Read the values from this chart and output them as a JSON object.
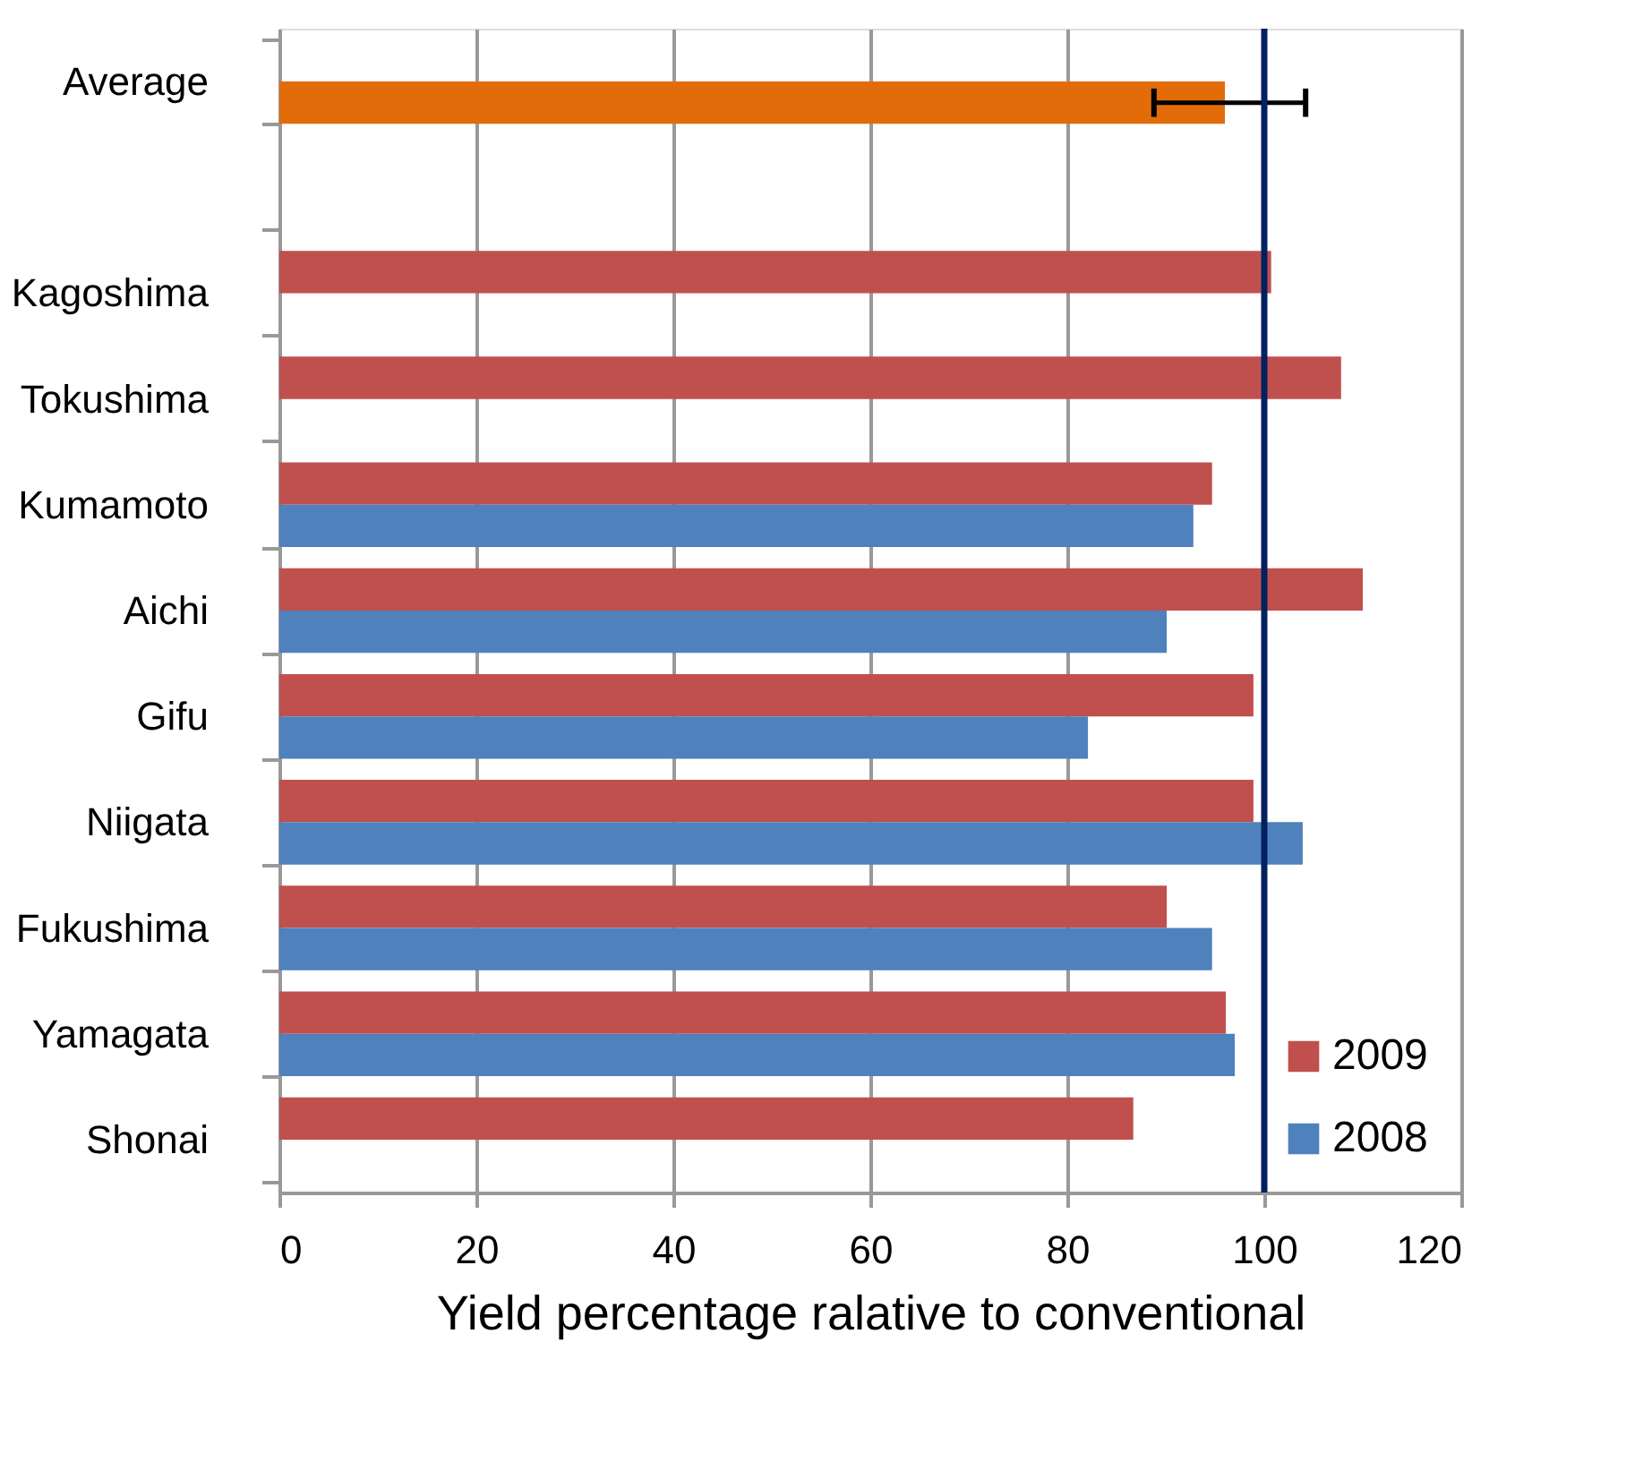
{
  "chart_data": {
    "type": "bar",
    "orientation": "horizontal",
    "xlabel": "Yield percentage ralative to conventional",
    "categories": [
      "Average",
      null,
      "Kagoshima",
      "Tokushima",
      "Kumamoto",
      "Aichi",
      "Gifu",
      "Niigata",
      "Fukushima",
      "Yamagata",
      "Shonai"
    ],
    "series": [
      {
        "name": "2009",
        "color": "#c0504d",
        "values": [
          null,
          null,
          100.7,
          107.8,
          94.7,
          110.0,
          98.9,
          98.9,
          90.1,
          96.1,
          86.7
        ]
      },
      {
        "name": "2008",
        "color": "#4f81bd",
        "colors": [
          "#e36c0a",
          null,
          null,
          null,
          "#4f81bd",
          "#4f81bd",
          "#4f81bd",
          "#4f81bd",
          "#4f81bd",
          "#4f81bd",
          null
        ],
        "values": [
          96.0,
          null,
          null,
          null,
          92.8,
          90.1,
          82.1,
          103.9,
          94.7,
          97.0,
          null
        ],
        "errors": [
          [
            88.8,
            104.2
          ],
          null,
          null,
          null,
          null,
          null,
          null,
          null,
          null,
          null,
          null
        ]
      }
    ],
    "xlim": [
      0,
      120
    ],
    "xticks": [
      0,
      20,
      40,
      60,
      80,
      100,
      120
    ],
    "grid": "x",
    "legend": "bottom right",
    "ref_lines": [
      {
        "axis": "x",
        "value": 100,
        "color": "#002060"
      }
    ]
  }
}
